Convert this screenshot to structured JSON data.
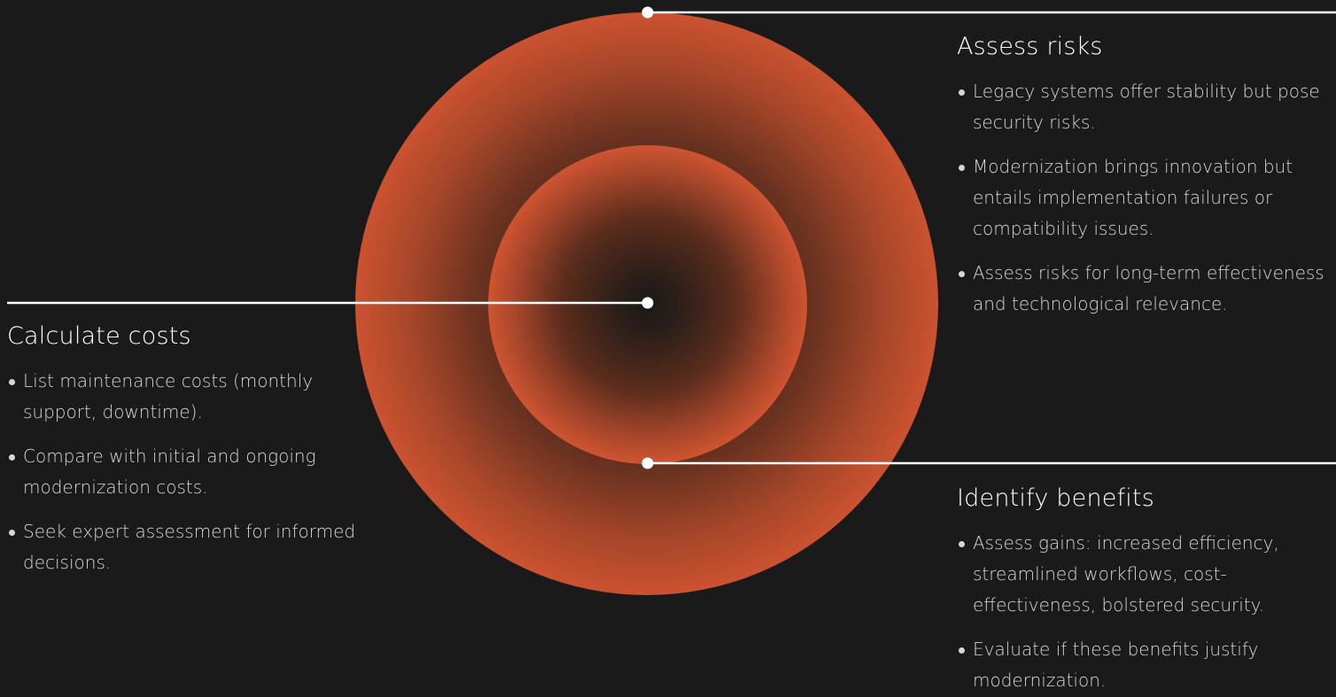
{
  "sections": {
    "risks": {
      "heading": "Assess risks",
      "items": [
        "Legacy systems offer stability but pose security risks.",
        "Modernization brings innovation but entails implementation failures or compatibility issues.",
        "Assess risks for long-term effectiveness and technological relevance."
      ]
    },
    "costs": {
      "heading": "Calculate costs",
      "items": [
        "List maintenance costs (monthly support, downtime).",
        "Compare with initial and ongoing modernization costs.",
        "Seek expert assessment for informed decisions."
      ]
    },
    "benefits": {
      "heading": "Identify benefits",
      "items": [
        "Assess gains: increased efficiency, streamlined workflows, cost-effectiveness, bolstered security.",
        "Evaluate if these benefits justify modernization."
      ]
    }
  },
  "colors": {
    "background": "#1a1a1a",
    "accent": "#cb5230",
    "line": "#ffffff",
    "body_text": "#d6d6d6"
  }
}
